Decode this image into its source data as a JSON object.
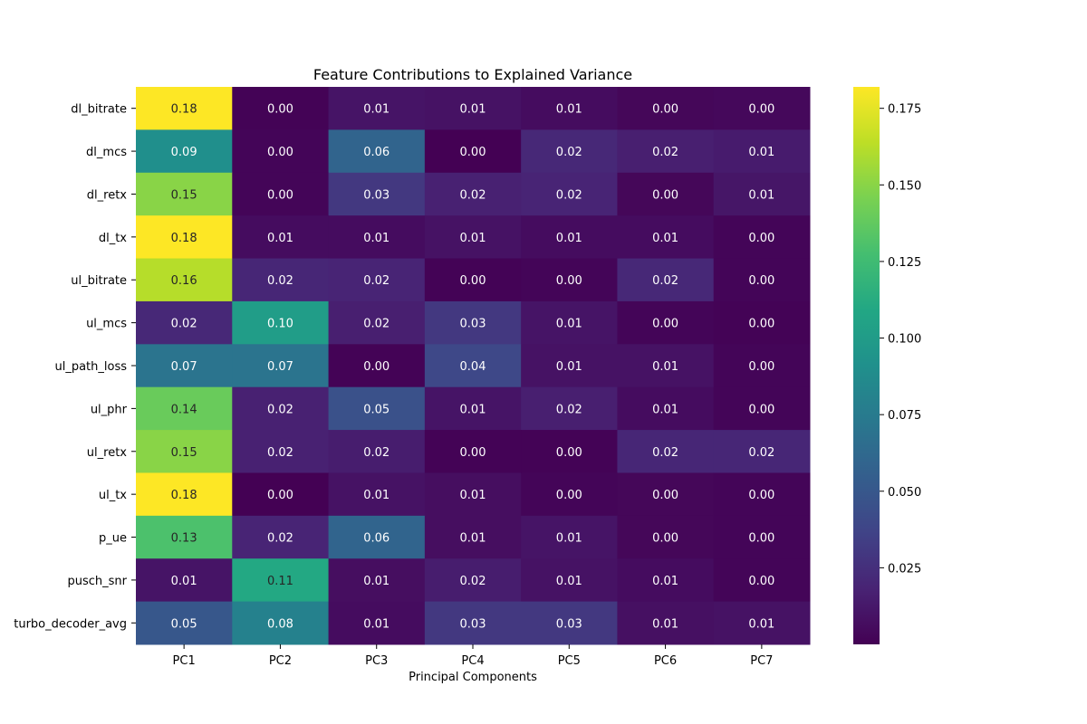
{
  "chart_data": {
    "type": "heatmap",
    "title": "Feature Contributions to Explained Variance",
    "xlabel": "Principal Components",
    "ylabel": "",
    "columns": [
      "PC1",
      "PC2",
      "PC3",
      "PC4",
      "PC5",
      "PC6",
      "PC7"
    ],
    "rows": [
      "dl_bitrate",
      "dl_mcs",
      "dl_retx",
      "dl_tx",
      "ul_bitrate",
      "ul_mcs",
      "ul_path_loss",
      "ul_phr",
      "ul_retx",
      "ul_tx",
      "p_ue",
      "pusch_snr",
      "turbo_decoder_avg"
    ],
    "values": [
      [
        0.182,
        0.001,
        0.01,
        0.009,
        0.006,
        0.003,
        0.004
      ],
      [
        0.09,
        0.002,
        0.059,
        0.0,
        0.021,
        0.016,
        0.014
      ],
      [
        0.15,
        0.002,
        0.03,
        0.017,
        0.019,
        0.003,
        0.011
      ],
      [
        0.182,
        0.006,
        0.006,
        0.009,
        0.006,
        0.006,
        0.002
      ],
      [
        0.162,
        0.02,
        0.019,
        0.001,
        0.002,
        0.021,
        0.002
      ],
      [
        0.021,
        0.101,
        0.016,
        0.03,
        0.01,
        0.002,
        0.001
      ],
      [
        0.07,
        0.07,
        0.001,
        0.04,
        0.009,
        0.009,
        0.002
      ],
      [
        0.14,
        0.017,
        0.046,
        0.01,
        0.016,
        0.006,
        0.002
      ],
      [
        0.15,
        0.017,
        0.015,
        0.001,
        0.001,
        0.02,
        0.02
      ],
      [
        0.182,
        0.0,
        0.009,
        0.007,
        0.002,
        0.003,
        0.002
      ],
      [
        0.13,
        0.019,
        0.059,
        0.007,
        0.01,
        0.003,
        0.002
      ],
      [
        0.01,
        0.11,
        0.007,
        0.015,
        0.009,
        0.006,
        0.002
      ],
      [
        0.05,
        0.08,
        0.006,
        0.03,
        0.03,
        0.008,
        0.009
      ]
    ],
    "annotations": [
      [
        "0.18",
        "0.00",
        "0.01",
        "0.01",
        "0.01",
        "0.00",
        "0.00"
      ],
      [
        "0.09",
        "0.00",
        "0.06",
        "0.00",
        "0.02",
        "0.02",
        "0.01"
      ],
      [
        "0.15",
        "0.00",
        "0.03",
        "0.02",
        "0.02",
        "0.00",
        "0.01"
      ],
      [
        "0.18",
        "0.01",
        "0.01",
        "0.01",
        "0.01",
        "0.01",
        "0.00"
      ],
      [
        "0.16",
        "0.02",
        "0.02",
        "0.00",
        "0.00",
        "0.02",
        "0.00"
      ],
      [
        "0.02",
        "0.10",
        "0.02",
        "0.03",
        "0.01",
        "0.00",
        "0.00"
      ],
      [
        "0.07",
        "0.07",
        "0.00",
        "0.04",
        "0.01",
        "0.01",
        "0.00"
      ],
      [
        "0.14",
        "0.02",
        "0.05",
        "0.01",
        "0.02",
        "0.01",
        "0.00"
      ],
      [
        "0.15",
        "0.02",
        "0.02",
        "0.00",
        "0.00",
        "0.02",
        "0.02"
      ],
      [
        "0.18",
        "0.00",
        "0.01",
        "0.01",
        "0.00",
        "0.00",
        "0.00"
      ],
      [
        "0.13",
        "0.02",
        "0.06",
        "0.01",
        "0.01",
        "0.00",
        "0.00"
      ],
      [
        "0.01",
        "0.11",
        "0.01",
        "0.02",
        "0.01",
        "0.01",
        "0.00"
      ],
      [
        "0.05",
        "0.08",
        "0.01",
        "0.03",
        "0.03",
        "0.01",
        "0.01"
      ]
    ],
    "colormap": "viridis",
    "color_range": [
      0.0,
      0.182
    ],
    "colorbar_ticks": [
      "0.025",
      "0.050",
      "0.075",
      "0.100",
      "0.125",
      "0.150",
      "0.175"
    ],
    "grid": false,
    "legend": "colorbar-right"
  }
}
